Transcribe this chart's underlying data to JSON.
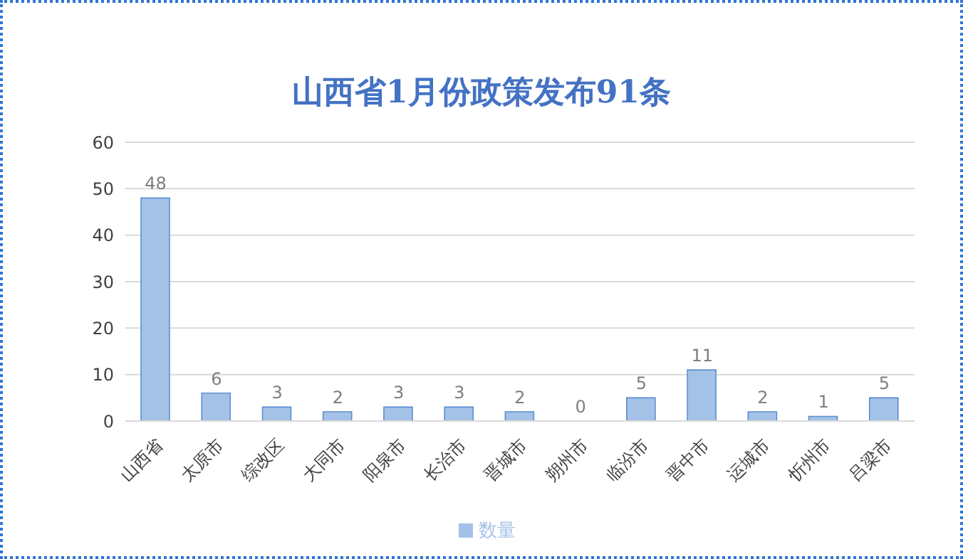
{
  "chart_data": {
    "type": "bar",
    "title": "山西省1月份政策发布91条",
    "categories": [
      "山西省",
      "太原市",
      "综改区",
      "大同市",
      "阳泉市",
      "长治市",
      "晋城市",
      "朔州市",
      "临汾市",
      "晋中市",
      "运城市",
      "忻州市",
      "吕梁市"
    ],
    "series": [
      {
        "name": "数量",
        "color": "#a4c2e8",
        "values": [
          48,
          6,
          3,
          2,
          3,
          3,
          2,
          0,
          5,
          11,
          2,
          1,
          5
        ]
      }
    ],
    "ylim": [
      0,
      60
    ],
    "yticks": [
      0,
      10,
      20,
      30,
      40,
      50,
      60
    ],
    "grid": "y",
    "legend": "bottom",
    "data_labels": true
  }
}
